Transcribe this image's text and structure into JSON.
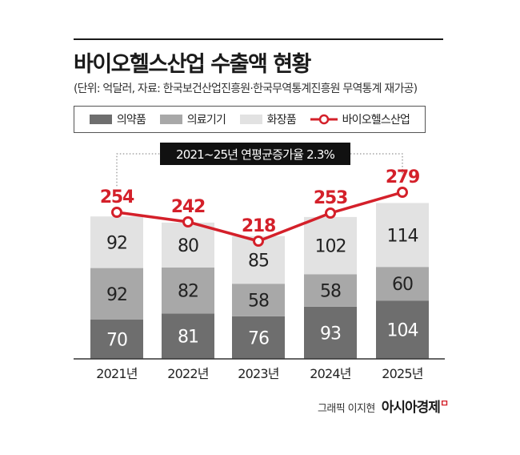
{
  "header": {
    "title": "바이오헬스산업 수출액 현황",
    "subtitle": "(단위: 억달러, 자료: 한국보건산업진흥원·한국무역통계진흥원 무역통계 재가공)"
  },
  "legend": {
    "items": [
      "의약품",
      "의료기기",
      "화장품",
      "바이오헬스산업"
    ]
  },
  "annotation": {
    "text": "2021~25년 연평균증가율 2.3%"
  },
  "colors": {
    "pharma": "#6e6e6e",
    "medical": "#a8a8a8",
    "cosmetics": "#e2e2e2",
    "total_line": "#d4202a"
  },
  "chart_data": {
    "type": "bar",
    "stacked": true,
    "categories": [
      "2021년",
      "2022년",
      "2023년",
      "2024년",
      "2025년"
    ],
    "series": [
      {
        "name": "의약품",
        "values": [
          70,
          81,
          76,
          93,
          104
        ]
      },
      {
        "name": "의료기기",
        "values": [
          92,
          82,
          58,
          58,
          60
        ]
      },
      {
        "name": "화장품",
        "values": [
          92,
          80,
          85,
          102,
          114
        ]
      }
    ],
    "line_series": {
      "name": "바이오헬스산업",
      "values": [
        254,
        242,
        218,
        253,
        279
      ]
    },
    "title": "바이오헬스산업 수출액 현황",
    "xlabel": "",
    "ylabel": "",
    "ylim": [
      0,
      300
    ],
    "grid": false,
    "legend_position": "top"
  },
  "footer": {
    "credit": "그래픽 이지현",
    "brand": "아시아경제",
    "brand_mark": "ㅁ"
  }
}
